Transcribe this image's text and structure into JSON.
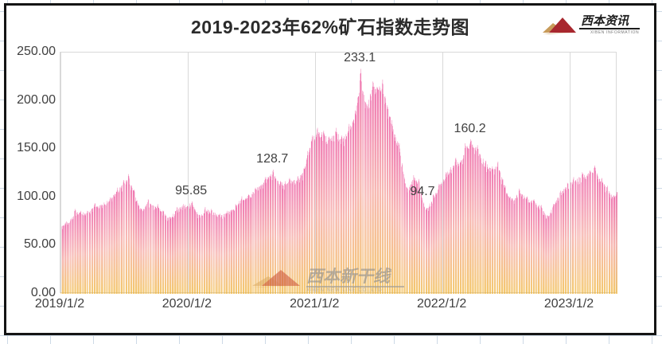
{
  "header": {
    "title": "2019-2023年62%矿石指数走势图",
    "logo": {
      "brand": "西本资讯",
      "brand_sub": "XIBEN INFORMATION"
    }
  },
  "watermark": {
    "brand": "西本新干线",
    "brand_sub": "XIBEN NEW LINE CO.,LTD"
  },
  "chart_data": {
    "type": "bar",
    "title": "2019-2023年62%矿石指数走势图",
    "xlabel": "",
    "ylabel": "",
    "ylim": [
      0,
      250
    ],
    "grid": "vertical-only",
    "legend": "none",
    "y_ticks": [
      "0.00",
      "50.00",
      "100.00",
      "150.00",
      "200.00",
      "250.00"
    ],
    "x_ticks": [
      "2019/1/2",
      "2020/1/2",
      "2021/1/2",
      "2022/1/2",
      "2023/1/2"
    ],
    "x_tick_dates": [
      "2019-01-02",
      "2020-01-02",
      "2021-01-02",
      "2022-01-02",
      "2023-01-02"
    ],
    "x_range": [
      "2019-01-02",
      "2023-05-19"
    ],
    "frequency": "daily (trading days)",
    "colors": {
      "bar_gradient_top": "#e93f92",
      "bar_gradient_mid": "#f49a92",
      "bar_gradient_bottom": "#efb02d",
      "gridline": "#d9d9d9",
      "axis_text": "#404040"
    },
    "annotations": [
      {
        "label": "95.85",
        "date": "2020-01-14",
        "value": 95.85
      },
      {
        "label": "128.7",
        "date": "2020-09-03",
        "value": 128.7
      },
      {
        "label": "233.1",
        "date": "2021-05-12",
        "value": 233.1
      },
      {
        "label": "94.7",
        "date": "2021-11-08",
        "value": 94.7
      },
      {
        "label": "160.2",
        "date": "2022-03-24",
        "value": 160.2
      }
    ],
    "series": [
      {
        "name": "62%矿石指数",
        "points": [
          [
            "2019-01-02",
            72
          ],
          [
            "2019-01-18",
            75
          ],
          [
            "2019-02-01",
            78
          ],
          [
            "2019-02-12",
            88
          ],
          [
            "2019-03-01",
            86
          ],
          [
            "2019-03-20",
            86
          ],
          [
            "2019-04-10",
            94
          ],
          [
            "2019-05-06",
            95
          ],
          [
            "2019-05-24",
            100
          ],
          [
            "2019-06-14",
            110
          ],
          [
            "2019-07-02",
            118
          ],
          [
            "2019-07-16",
            124
          ],
          [
            "2019-08-01",
            108
          ],
          [
            "2019-08-22",
            88
          ],
          [
            "2019-09-10",
            98
          ],
          [
            "2019-10-08",
            93
          ],
          [
            "2019-10-25",
            86
          ],
          [
            "2019-11-11",
            80
          ],
          [
            "2019-12-02",
            90
          ],
          [
            "2019-12-20",
            93
          ],
          [
            "2020-01-14",
            95.85
          ],
          [
            "2020-02-04",
            82
          ],
          [
            "2020-02-21",
            90
          ],
          [
            "2020-03-10",
            88
          ],
          [
            "2020-04-03",
            83
          ],
          [
            "2020-04-24",
            86
          ],
          [
            "2020-05-18",
            93
          ],
          [
            "2020-06-05",
            101
          ],
          [
            "2020-06-24",
            103
          ],
          [
            "2020-07-14",
            110
          ],
          [
            "2020-08-11",
            121
          ],
          [
            "2020-09-03",
            128.7
          ],
          [
            "2020-09-24",
            117
          ],
          [
            "2020-10-20",
            120
          ],
          [
            "2020-11-13",
            122
          ],
          [
            "2020-11-30",
            130
          ],
          [
            "2020-12-11",
            148
          ],
          [
            "2020-12-24",
            164
          ],
          [
            "2021-01-08",
            172
          ],
          [
            "2021-01-26",
            169
          ],
          [
            "2021-02-10",
            163
          ],
          [
            "2021-03-02",
            172
          ],
          [
            "2021-03-19",
            164
          ],
          [
            "2021-04-09",
            176
          ],
          [
            "2021-04-27",
            190
          ],
          [
            "2021-05-12",
            233.1
          ],
          [
            "2021-05-27",
            198
          ],
          [
            "2021-06-16",
            220
          ],
          [
            "2021-07-14",
            222
          ],
          [
            "2021-08-09",
            180
          ],
          [
            "2021-08-31",
            156
          ],
          [
            "2021-09-21",
            110
          ],
          [
            "2021-10-11",
            123
          ],
          [
            "2021-10-26",
            119
          ],
          [
            "2021-11-08",
            94.7
          ],
          [
            "2021-11-18",
            89
          ],
          [
            "2021-12-06",
            103
          ],
          [
            "2021-12-23",
            114
          ],
          [
            "2022-01-12",
            126
          ],
          [
            "2022-02-09",
            141
          ],
          [
            "2022-02-24",
            138
          ],
          [
            "2022-03-08",
            156
          ],
          [
            "2022-03-24",
            160.2
          ],
          [
            "2022-04-12",
            154
          ],
          [
            "2022-05-06",
            138
          ],
          [
            "2022-05-25",
            132
          ],
          [
            "2022-06-10",
            137
          ],
          [
            "2022-07-01",
            112
          ],
          [
            "2022-07-21",
            99
          ],
          [
            "2022-08-10",
            109
          ],
          [
            "2022-09-01",
            101
          ],
          [
            "2022-09-21",
            98
          ],
          [
            "2022-10-12",
            92
          ],
          [
            "2022-10-31",
            81
          ],
          [
            "2022-11-16",
            93
          ],
          [
            "2022-12-06",
            108
          ],
          [
            "2022-12-26",
            115
          ],
          [
            "2023-01-13",
            121
          ],
          [
            "2023-02-07",
            126
          ],
          [
            "2023-03-01",
            128
          ],
          [
            "2023-03-15",
            133
          ],
          [
            "2023-04-04",
            120
          ],
          [
            "2023-04-20",
            112
          ],
          [
            "2023-05-09",
            102
          ],
          [
            "2023-05-19",
            108
          ]
        ]
      }
    ]
  }
}
